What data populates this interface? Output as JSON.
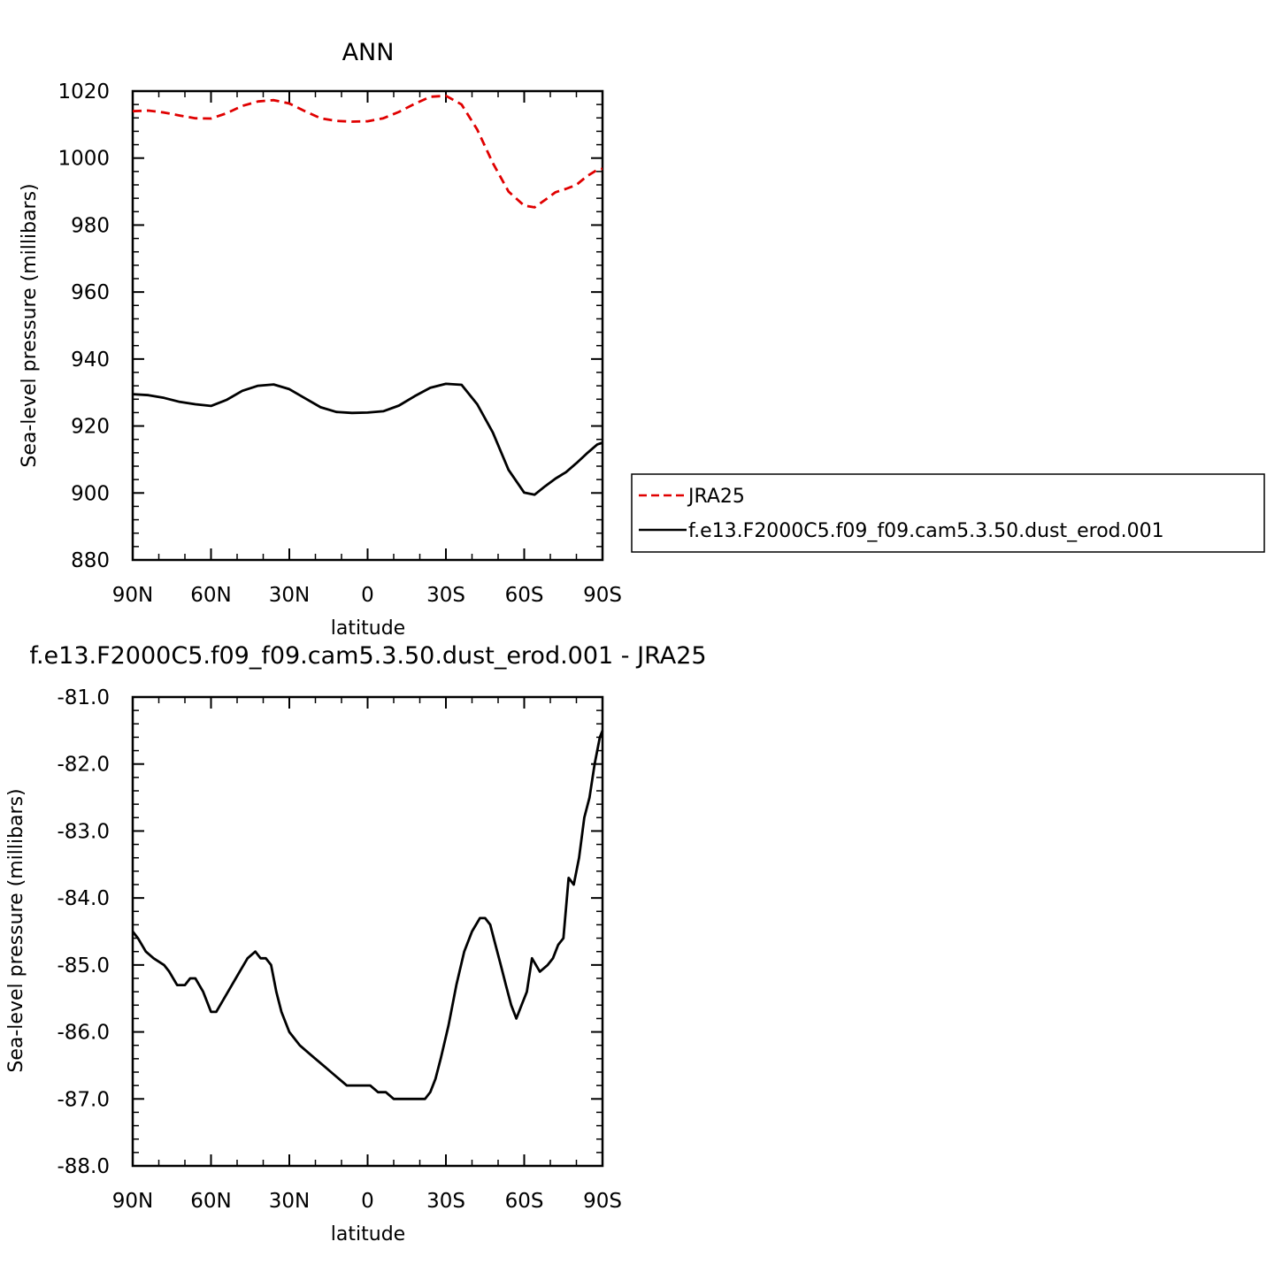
{
  "chart_data": [
    {
      "type": "line",
      "title": "ANN",
      "xlabel": "latitude",
      "ylabel": "Sea-level pressure (millibars)",
      "xlim": [
        90,
        -90
      ],
      "ylim": [
        880,
        1020
      ],
      "xticks": [
        90,
        60,
        30,
        0,
        -30,
        -60,
        -90
      ],
      "xtick_labels": [
        "90N",
        "60N",
        "30N",
        "0",
        "30S",
        "60S",
        "90S"
      ],
      "yticks": [
        880,
        900,
        920,
        940,
        960,
        980,
        1000,
        1020
      ],
      "ytick_labels": [
        "880",
        "900",
        "920",
        "940",
        "960",
        "980",
        "1000",
        "1020"
      ],
      "grid": false,
      "legend_position": "right",
      "series": [
        {
          "name": "JRA25",
          "color": "#e00000",
          "dash": true,
          "x": [
            90,
            84,
            78,
            72,
            66,
            60,
            54,
            48,
            42,
            36,
            30,
            24,
            18,
            12,
            6,
            0,
            -6,
            -12,
            -18,
            -24,
            -30,
            -36,
            -42,
            -48,
            -54,
            -60,
            -64,
            -68,
            -72,
            -76,
            -80,
            -84,
            -88,
            -90
          ],
          "values": [
            1014.0,
            1014.2,
            1013.6,
            1012.7,
            1011.9,
            1011.8,
            1013.4,
            1015.6,
            1016.9,
            1017.3,
            1016.3,
            1014.0,
            1011.9,
            1011.1,
            1010.9,
            1011.0,
            1011.9,
            1013.8,
            1016.2,
            1018.3,
            1018.6,
            1016.0,
            1008.5,
            998.5,
            990.0,
            985.8,
            985.3,
            987.5,
            989.8,
            990.8,
            992.0,
            994.6,
            996.5,
            996.8
          ]
        },
        {
          "name": "f.e13.F2000C5.f09_f09.cam5.3.50.dust_erod.001",
          "color": "#000000",
          "dash": false,
          "x": [
            90,
            84,
            78,
            72,
            66,
            60,
            54,
            48,
            42,
            36,
            30,
            24,
            18,
            12,
            6,
            0,
            -6,
            -12,
            -18,
            -24,
            -30,
            -36,
            -42,
            -48,
            -54,
            -60,
            -64,
            -68,
            -72,
            -76,
            -80,
            -84,
            -88,
            -90
          ],
          "values": [
            929.5,
            929.2,
            928.4,
            927.2,
            926.5,
            926.0,
            927.8,
            930.5,
            932.0,
            932.4,
            931.0,
            928.3,
            925.6,
            924.2,
            923.9,
            924.0,
            924.4,
            926.1,
            928.9,
            931.4,
            932.6,
            932.3,
            926.5,
            918.0,
            906.9,
            900.1,
            899.5,
            902.0,
            904.3,
            906.2,
            908.9,
            911.8,
            914.5,
            915.0
          ]
        }
      ]
    },
    {
      "type": "line",
      "title": "f.e13.F2000C5.f09_f09.cam5.3.50.dust_erod.001 - JRA25",
      "xlabel": "latitude",
      "ylabel": "Sea-level pressure (millibars)",
      "xlim": [
        90,
        -90
      ],
      "ylim": [
        -88,
        -81
      ],
      "xticks": [
        90,
        60,
        30,
        0,
        -30,
        -60,
        -90
      ],
      "xtick_labels": [
        "90N",
        "60N",
        "30N",
        "0",
        "30S",
        "60S",
        "90S"
      ],
      "yticks": [
        -88,
        -87,
        -86,
        -85,
        -84,
        -83,
        -82,
        -81
      ],
      "ytick_labels": [
        "-88.0",
        "-87.0",
        "-86.0",
        "-85.0",
        "-84.0",
        "-83.0",
        "-82.0",
        "-81.0"
      ],
      "grid": false,
      "series": [
        {
          "color": "#000000",
          "x": [
            90,
            88,
            85,
            82,
            78,
            76,
            73,
            70,
            68,
            66,
            63,
            60,
            58,
            55,
            52,
            49,
            46,
            43,
            41,
            39,
            37,
            35,
            33,
            30,
            28,
            26,
            23,
            20,
            17,
            14,
            11,
            8,
            5,
            2,
            -1,
            -4,
            -7,
            -10,
            -13,
            -16,
            -19,
            -22,
            -24,
            -26,
            -28,
            -31,
            -34,
            -37,
            -40,
            -43,
            -45,
            -47,
            -49,
            -51,
            -53,
            -55,
            -57,
            -59,
            -61,
            -63,
            -66,
            -69,
            -71,
            -73,
            -75,
            -77,
            -79,
            -81,
            -83,
            -85,
            -87,
            -89,
            -90
          ],
          "values": [
            -84.5,
            -84.6,
            -84.8,
            -84.9,
            -85.0,
            -85.1,
            -85.3,
            -85.3,
            -85.2,
            -85.2,
            -85.4,
            -85.7,
            -85.7,
            -85.5,
            -85.3,
            -85.1,
            -84.9,
            -84.8,
            -84.9,
            -84.9,
            -85.0,
            -85.4,
            -85.7,
            -86.0,
            -86.1,
            -86.2,
            -86.3,
            -86.4,
            -86.5,
            -86.6,
            -86.7,
            -86.8,
            -86.8,
            -86.8,
            -86.8,
            -86.9,
            -86.9,
            -87.0,
            -87.0,
            -87.0,
            -87.0,
            -87.0,
            -86.9,
            -86.7,
            -86.4,
            -85.9,
            -85.3,
            -84.8,
            -84.5,
            -84.3,
            -84.3,
            -84.4,
            -84.7,
            -85.0,
            -85.3,
            -85.6,
            -85.8,
            -85.6,
            -85.4,
            -84.9,
            -85.1,
            -85.0,
            -84.9,
            -84.7,
            -84.6,
            -83.7,
            -83.8,
            -83.4,
            -82.8,
            -82.5,
            -82.0,
            -81.6,
            -81.5
          ]
        }
      ]
    }
  ]
}
